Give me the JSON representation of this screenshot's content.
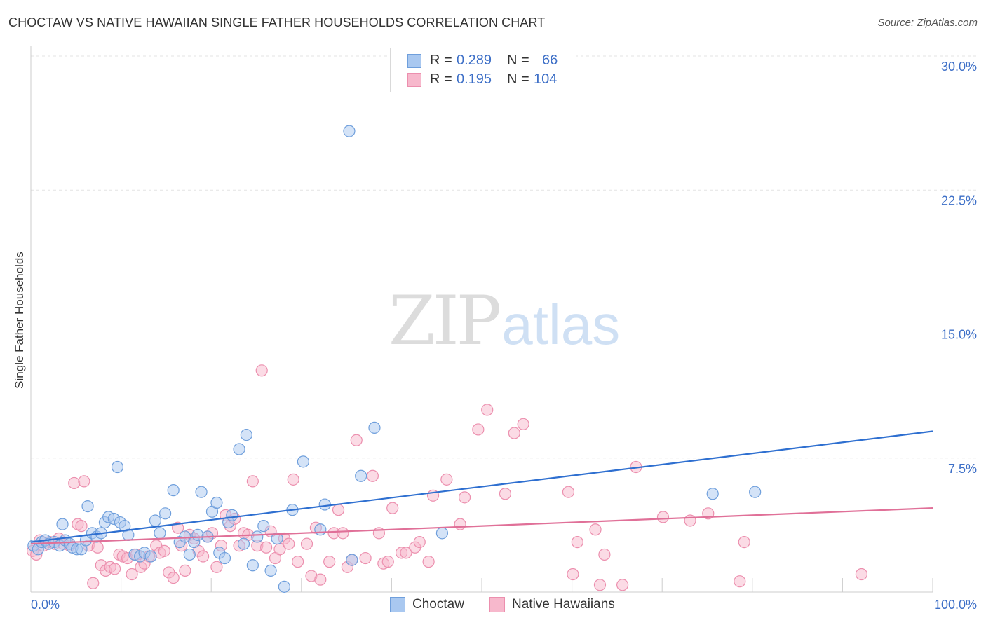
{
  "title": "CHOCTAW VS NATIVE HAWAIIAN SINGLE FATHER HOUSEHOLDS CORRELATION CHART",
  "source": "Source: ZipAtlas.com",
  "watermark": {
    "zip": "ZIP",
    "atlas": "atlas"
  },
  "legend": {
    "rows": [
      {
        "r_label": "R =",
        "r_value": "0.289",
        "n_label": "N =",
        "n_value": "66"
      },
      {
        "r_label": "R =",
        "r_value": "0.195",
        "n_label": "N =",
        "n_value": "104"
      }
    ]
  },
  "bottom_legend": [
    "Choctaw",
    "Native Hawaiians"
  ],
  "colors": {
    "choctaw_fill": "#a9c8f0",
    "choctaw_stroke": "#6f9fdc",
    "choctaw_line": "#2e6fd0",
    "hawaiian_fill": "#f7b8cc",
    "hawaiian_stroke": "#ec8fae",
    "hawaiian_line": "#e07098",
    "tick_label": "#3d6fc7",
    "grid": "#e3e3e3"
  },
  "chart_data": {
    "type": "scatter",
    "title": "CHOCTAW VS NATIVE HAWAIIAN SINGLE FATHER HOUSEHOLDS CORRELATION CHART",
    "xlabel": "",
    "ylabel": "Single Father Households",
    "xlim": [
      0,
      100
    ],
    "ylim": [
      0,
      30
    ],
    "x_tick_labels": [
      "0.0%",
      "100.0%"
    ],
    "y_ticks": [
      7.5,
      15.0,
      22.5,
      30.0
    ],
    "y_tick_labels": [
      "7.5%",
      "15.0%",
      "22.5%",
      "30.0%"
    ],
    "grid": true,
    "legend_position": "top-center",
    "series": [
      {
        "name": "Choctaw",
        "r": 0.289,
        "n": 66,
        "trend": [
          [
            0,
            2.8
          ],
          [
            100,
            9.0
          ]
        ],
        "points": [
          [
            0.3,
            2.6
          ],
          [
            0.8,
            2.4
          ],
          [
            1.2,
            2.8
          ],
          [
            1.6,
            2.9
          ],
          [
            2.0,
            2.7
          ],
          [
            2.6,
            2.8
          ],
          [
            3.2,
            2.6
          ],
          [
            3.5,
            3.8
          ],
          [
            3.8,
            2.9
          ],
          [
            4.3,
            2.7
          ],
          [
            4.6,
            2.5
          ],
          [
            5.1,
            2.4
          ],
          [
            5.6,
            2.4
          ],
          [
            6.1,
            2.9
          ],
          [
            6.3,
            4.8
          ],
          [
            6.8,
            3.3
          ],
          [
            7.3,
            3.1
          ],
          [
            7.8,
            3.3
          ],
          [
            8.2,
            3.9
          ],
          [
            8.6,
            4.2
          ],
          [
            9.2,
            4.1
          ],
          [
            9.6,
            7.0
          ],
          [
            9.9,
            3.9
          ],
          [
            10.4,
            3.7
          ],
          [
            10.8,
            3.2
          ],
          [
            11.5,
            2.1
          ],
          [
            12.1,
            2.0
          ],
          [
            12.6,
            2.2
          ],
          [
            13.3,
            2.0
          ],
          [
            13.8,
            4.0
          ],
          [
            14.3,
            3.3
          ],
          [
            14.9,
            4.4
          ],
          [
            15.8,
            5.7
          ],
          [
            16.5,
            2.8
          ],
          [
            17.1,
            3.1
          ],
          [
            17.6,
            2.1
          ],
          [
            18.1,
            2.8
          ],
          [
            18.5,
            3.2
          ],
          [
            18.9,
            5.6
          ],
          [
            19.6,
            3.1
          ],
          [
            20.1,
            4.5
          ],
          [
            20.6,
            5.0
          ],
          [
            20.9,
            2.2
          ],
          [
            21.5,
            1.9
          ],
          [
            21.9,
            3.9
          ],
          [
            22.3,
            4.3
          ],
          [
            23.1,
            8.0
          ],
          [
            23.6,
            2.7
          ],
          [
            23.9,
            8.8
          ],
          [
            24.6,
            1.5
          ],
          [
            25.1,
            3.1
          ],
          [
            25.8,
            3.7
          ],
          [
            26.6,
            1.2
          ],
          [
            27.3,
            3.0
          ],
          [
            28.1,
            0.3
          ],
          [
            29.0,
            4.6
          ],
          [
            30.2,
            7.3
          ],
          [
            32.1,
            3.5
          ],
          [
            32.6,
            4.9
          ],
          [
            35.3,
            25.8
          ],
          [
            35.6,
            1.8
          ],
          [
            36.6,
            6.5
          ],
          [
            38.1,
            9.2
          ],
          [
            45.6,
            3.3
          ],
          [
            75.6,
            5.5
          ],
          [
            80.3,
            5.6
          ]
        ]
      },
      {
        "name": "Native Hawaiians",
        "r": 0.195,
        "n": 104,
        "trend": [
          [
            0,
            2.7
          ],
          [
            100,
            4.7
          ]
        ],
        "points": [
          [
            0.2,
            2.3
          ],
          [
            0.6,
            2.1
          ],
          [
            1.0,
            2.9
          ],
          [
            1.4,
            2.6
          ],
          [
            2.1,
            2.8
          ],
          [
            2.6,
            2.7
          ],
          [
            3.1,
            3.0
          ],
          [
            3.6,
            2.7
          ],
          [
            4.3,
            2.6
          ],
          [
            4.8,
            6.1
          ],
          [
            5.2,
            3.8
          ],
          [
            5.6,
            3.7
          ],
          [
            5.9,
            6.2
          ],
          [
            6.4,
            2.6
          ],
          [
            6.9,
            0.5
          ],
          [
            7.4,
            2.5
          ],
          [
            7.8,
            1.5
          ],
          [
            8.3,
            1.2
          ],
          [
            8.8,
            1.4
          ],
          [
            9.3,
            1.3
          ],
          [
            9.8,
            2.1
          ],
          [
            10.2,
            2.0
          ],
          [
            10.7,
            1.9
          ],
          [
            11.2,
            1.0
          ],
          [
            11.7,
            2.1
          ],
          [
            12.2,
            1.4
          ],
          [
            12.6,
            1.6
          ],
          [
            13.1,
            2.0
          ],
          [
            13.9,
            2.6
          ],
          [
            14.3,
            2.2
          ],
          [
            14.8,
            2.3
          ],
          [
            15.3,
            1.1
          ],
          [
            15.8,
            0.8
          ],
          [
            16.3,
            3.6
          ],
          [
            16.7,
            2.6
          ],
          [
            17.1,
            1.2
          ],
          [
            17.6,
            3.2
          ],
          [
            18.1,
            3.0
          ],
          [
            18.6,
            2.3
          ],
          [
            19.1,
            2.0
          ],
          [
            19.6,
            3.1
          ],
          [
            20.1,
            3.3
          ],
          [
            20.6,
            1.4
          ],
          [
            21.1,
            2.6
          ],
          [
            21.6,
            4.3
          ],
          [
            22.1,
            3.7
          ],
          [
            22.6,
            4.1
          ],
          [
            23.1,
            2.6
          ],
          [
            23.6,
            3.3
          ],
          [
            24.1,
            3.2
          ],
          [
            24.6,
            6.2
          ],
          [
            25.1,
            2.6
          ],
          [
            25.6,
            12.4
          ],
          [
            26.1,
            2.5
          ],
          [
            26.6,
            3.4
          ],
          [
            27.1,
            1.9
          ],
          [
            27.6,
            2.4
          ],
          [
            28.1,
            3.0
          ],
          [
            28.6,
            2.7
          ],
          [
            29.1,
            6.3
          ],
          [
            29.6,
            1.7
          ],
          [
            30.6,
            2.7
          ],
          [
            31.1,
            0.9
          ],
          [
            31.6,
            3.6
          ],
          [
            32.1,
            0.7
          ],
          [
            33.1,
            1.7
          ],
          [
            33.6,
            3.3
          ],
          [
            34.1,
            4.6
          ],
          [
            34.6,
            3.3
          ],
          [
            35.1,
            1.4
          ],
          [
            35.6,
            1.8
          ],
          [
            36.1,
            8.5
          ],
          [
            37.1,
            1.9
          ],
          [
            37.9,
            6.5
          ],
          [
            38.6,
            3.3
          ],
          [
            39.1,
            1.6
          ],
          [
            39.6,
            1.7
          ],
          [
            40.1,
            4.7
          ],
          [
            41.1,
            2.2
          ],
          [
            41.6,
            2.2
          ],
          [
            42.6,
            2.5
          ],
          [
            43.1,
            2.8
          ],
          [
            44.1,
            1.7
          ],
          [
            44.6,
            5.4
          ],
          [
            46.1,
            6.3
          ],
          [
            47.6,
            3.8
          ],
          [
            48.1,
            5.3
          ],
          [
            49.6,
            9.1
          ],
          [
            50.6,
            10.2
          ],
          [
            52.6,
            5.5
          ],
          [
            53.6,
            8.9
          ],
          [
            54.6,
            9.4
          ],
          [
            59.6,
            5.6
          ],
          [
            60.1,
            1.0
          ],
          [
            60.6,
            2.8
          ],
          [
            62.6,
            3.5
          ],
          [
            63.1,
            0.4
          ],
          [
            63.6,
            2.1
          ],
          [
            65.6,
            0.4
          ],
          [
            67.1,
            7.0
          ],
          [
            70.1,
            4.2
          ],
          [
            73.1,
            4.0
          ],
          [
            75.1,
            4.4
          ],
          [
            78.6,
            0.6
          ],
          [
            79.1,
            2.8
          ],
          [
            92.1,
            1.0
          ]
        ]
      }
    ]
  }
}
